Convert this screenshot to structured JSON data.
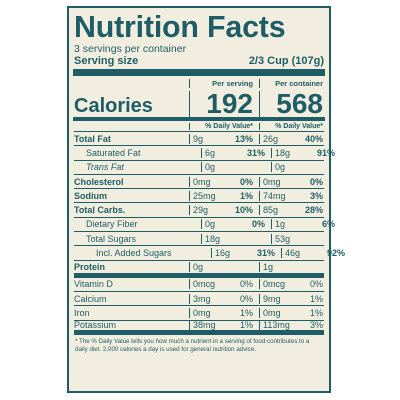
{
  "title": "Nutrition Facts",
  "servings": "3 servings per container",
  "serving_size_label": "Serving size",
  "serving_size_value": "2/3 Cup (107g)",
  "per_serving": "Per serving",
  "per_container": "Per container",
  "calories_label": "Calories",
  "calories_serving": "192",
  "calories_container": "568",
  "dv_header": "% Daily Value*",
  "rows": [
    {
      "label": "Total Fat",
      "a": "9g",
      "ap": "13%",
      "b": "26g",
      "bp": "40%"
    },
    {
      "label": "Saturated Fat",
      "a": "6g",
      "ap": "31%",
      "b": "18g",
      "bp": "91%"
    },
    {
      "label": "Trans Fat",
      "a": "0g",
      "ap": "",
      "b": "0g",
      "bp": ""
    },
    {
      "label": "Cholesterol",
      "a": "0mg",
      "ap": "0%",
      "b": "0mg",
      "bp": "0%"
    },
    {
      "label": "Sodium",
      "a": "25mg",
      "ap": "1%",
      "b": "74mg",
      "bp": "3%"
    },
    {
      "label": "Total Carbs.",
      "a": "29g",
      "ap": "10%",
      "b": "85g",
      "bp": "28%"
    },
    {
      "label": "Dietary Fiber",
      "a": "0g",
      "ap": "0%",
      "b": "1g",
      "bp": "6%"
    },
    {
      "label": "Total Sugars",
      "a": "18g",
      "ap": "",
      "b": "53g",
      "bp": ""
    },
    {
      "label": "Incl. Added Sugars",
      "a": "16g",
      "ap": "31%",
      "b": "46g",
      "bp": "92%"
    },
    {
      "label": "Protein",
      "a": "0g",
      "ap": "",
      "b": "1g",
      "bp": ""
    },
    {
      "label": "Vitamin D",
      "a": "0mcg",
      "ap": "0%",
      "b": "0mcg",
      "bp": "0%"
    },
    {
      "label": "Calcium",
      "a": "3mg",
      "ap": "0%",
      "b": "9mg",
      "bp": "1%"
    },
    {
      "label": "Iron",
      "a": "0mg",
      "ap": "1%",
      "b": "0mg",
      "bp": "1%"
    },
    {
      "label": "Potassium",
      "a": "38mg",
      "ap": "1%",
      "b": "113mg",
      "bp": "3%"
    }
  ],
  "footnote": "* The % Daily Value tells you how much a nutrient in a serving of food contributes to a daily diet. 2,000 calories a day is used for general nutrition advice."
}
